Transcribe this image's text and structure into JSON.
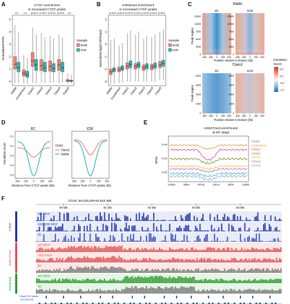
{
  "panels": {
    "A": {
      "letter": "A",
      "title": "CTCF enrichment\nin Increased CTCF peaks",
      "ylabel": "Normalized RPM",
      "yticks": [
        "0",
        "1",
        "2",
        "3",
        "4",
        "5"
      ],
      "categories": [
        "Stable",
        "Consensus",
        "Class1",
        "Class2",
        "Class3",
        "Class4",
        "Class5"
      ],
      "legend_title": "Sample",
      "legend": [
        {
          "name": "8cell",
          "color": "#f08070"
        },
        {
          "name": "ICM",
          "color": "#29b8b4"
        }
      ]
    },
    "B": {
      "letter": "B",
      "title": "H3K9me3 enrichment\nin Increased CTCF peaks",
      "ylabel": "Normalized log2(ChIP/input)",
      "yticks": [
        "-3",
        "-2",
        "-1",
        "0",
        "1",
        "2"
      ],
      "categories": [
        "Stable",
        "Consensus",
        "Class1",
        "Class2",
        "Class3",
        "Class4",
        "Class5"
      ],
      "legend_title": "Sample",
      "legend": [
        {
          "name": "8cell",
          "color": "#f08070"
        },
        {
          "name": "ICM",
          "color": "#29b8b4"
        }
      ]
    },
    "C": {
      "letter": "C",
      "row_titles": [
        "Stable",
        "Class1"
      ],
      "col_titles": [
        "8C",
        "ICM"
      ],
      "ylabel": "Peak region",
      "xlabel": "Position relative to feature (kb)",
      "xticks": [
        "-500",
        "-250",
        "0",
        "250",
        "500"
      ],
      "yticks_top": [
        "0",
        "2500",
        "5000",
        "7500",
        "10000",
        "12500"
      ],
      "yticks_bottom": [
        "0",
        "1000",
        "2000",
        "3000",
        "4000"
      ],
      "legend_title": "Insulation\nScore",
      "legend_ticks": [
        "0.5",
        "0.0",
        "-0.5",
        "-1.0"
      ]
    },
    "D": {
      "letter": "D",
      "titles": [
        "8C",
        "ICM"
      ],
      "ylabel": "Insulation score",
      "xlabel": "Distance from CTCF peaks (kb)",
      "xticks": [
        "-500",
        "-250",
        "0",
        "250",
        "500"
      ],
      "yticks": [
        "-0.5",
        "-0.4",
        "-0.3",
        "-0.2",
        "-0.1"
      ],
      "legend_title": "Class",
      "legend": [
        {
          "name": "Class1",
          "color": "#f08070"
        },
        {
          "name": "Stable",
          "color": "#29b8b4"
        }
      ]
    },
    "E": {
      "letter": "E",
      "title": "H3K27me3 enrichment\nat 8C stage",
      "ylabel": "RPM",
      "xticks": [
        "-10000",
        "-5000",
        "5'End",
        "3'End",
        "5000",
        "10000"
      ],
      "yticks": [
        "0.02",
        "0.03",
        "0.04"
      ],
      "legend": [
        {
          "name": "Stable",
          "color": "#3fa9c9"
        },
        {
          "name": "Consensus",
          "color": "#e0a020"
        },
        {
          "name": "Class1",
          "color": "#d04a9a"
        },
        {
          "name": "Class2",
          "color": "#7d8c2a"
        },
        {
          "name": "Class3",
          "color": "#e0c040"
        },
        {
          "name": "Class4",
          "color": "#c060c0"
        },
        {
          "name": "Class5",
          "color": "#7bb0c9"
        }
      ]
    },
    "F": {
      "letter": "F",
      "locus": "Chr10: 89,435,629-94,943,488",
      "scale_ticks": [
        "90 Mb",
        "91 Mb",
        "92 Mb",
        "93 Mb",
        "94 Mb"
      ],
      "groups": [
        {
          "label": "CTCF",
          "color": "#2233a8",
          "tracks": [
            "WT 8/ICF",
            "SKO+OE 8/ICF",
            "8C"
          ]
        },
        {
          "label": "H3K27me3",
          "color": "#e05050",
          "tracks": [
            "WT 8/ICF",
            "SKO 8/ICF",
            "8C"
          ]
        },
        {
          "label": "H3K9me3",
          "color": "#2a9a2a",
          "tracks": [
            "WT 8/ICF",
            "8C"
          ]
        }
      ],
      "peaks_label": "Class5 DE peaks\n(Increased)"
    }
  }
}
